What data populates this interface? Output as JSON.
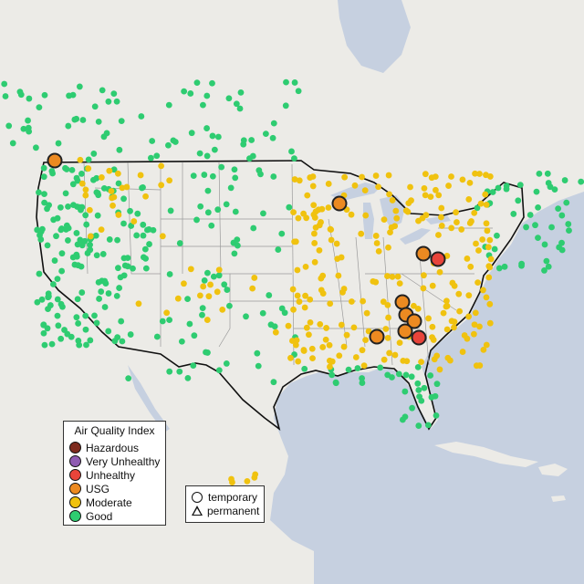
{
  "legend": {
    "title": "Air Quality Index",
    "categories": [
      {
        "label": "Hazardous",
        "color": "#7e2b1e"
      },
      {
        "label": "Very Unhealthy",
        "color": "#8f5bb2"
      },
      {
        "label": "Unhealthy",
        "color": "#e8443a"
      },
      {
        "label": "USG",
        "color": "#ec8a21"
      },
      {
        "label": "Moderate",
        "color": "#f0c20f"
      },
      {
        "label": "Good",
        "color": "#2ecc71"
      }
    ],
    "shapes": [
      {
        "label": "temporary",
        "icon": "circle-icon"
      },
      {
        "label": "permanent",
        "icon": "triangle-icon"
      }
    ]
  },
  "map_colors": {
    "land": "#f1efec",
    "water": "#c6d0e0",
    "state_border": "#9a9a9a",
    "country_border": "#111111"
  }
}
